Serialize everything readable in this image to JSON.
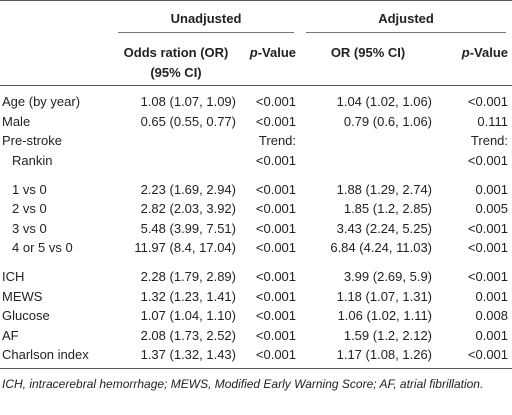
{
  "table": {
    "groups": [
      "Unadjusted",
      "Adjusted"
    ],
    "columns": [
      "Odds ration (OR) (95% CI)",
      "p-Value",
      "OR (95% CI)",
      "p-Value"
    ],
    "rows": [
      [
        "Age (by year)",
        "1.08 (1.07, 1.09)",
        "<0.001",
        "1.04 (1.02, 1.06)",
        "<0.001"
      ],
      [
        "Male",
        "0.65 (0.55, 0.77)",
        "<0.001",
        "0.79 (0.6, 1.06)",
        "0.111"
      ],
      [
        "Pre-stroke",
        null,
        "Trend:",
        null,
        "Trend:"
      ],
      [
        "Rankin",
        null,
        "<0.001",
        null,
        "<0.001"
      ],
      [
        "1 vs 0",
        "2.23 (1.69, 2.94)",
        "<0.001",
        "1.88 (1.29, 2.74)",
        "0.001"
      ],
      [
        "2 vs 0",
        "2.82 (2.03, 3.92)",
        "<0.001",
        "1.85 (1.2, 2.85)",
        "0.005"
      ],
      [
        "3 vs 0",
        "5.48 (3.99, 7.51)",
        "<0.001",
        "3.43 (2.24, 5.25)",
        "<0.001"
      ],
      [
        "4 or 5 vs 0",
        "11.97 (8.4, 17.04)",
        "<0.001",
        "6.84 (4.24, 11.03)",
        "<0.001"
      ],
      [
        "ICH",
        "2.28 (1.79, 2.89)",
        "<0.001",
        "3.99 (2.69, 5.9)",
        "<0.001"
      ],
      [
        "MEWS",
        "1.32 (1.23, 1.41)",
        "<0.001",
        "1.18 (1.07, 1.31)",
        "0.001"
      ],
      [
        "Glucose",
        "1.07 (1.04, 1.10)",
        "<0.001",
        "1.06 (1.02, 1.11)",
        "0.008"
      ],
      [
        "AF",
        "2.08 (1.73, 2.52)",
        "<0.001",
        "1.59 (1.2, 2.12)",
        "0.001"
      ],
      [
        "Charlson index",
        "1.37 (1.32, 1.43)",
        "<0.001",
        "1.17 (1.08, 1.26)",
        "<0.001"
      ]
    ]
  },
  "footnote": "ICH, intracerebral hemorrhage; MEWS, Modified Early Warning Score; AF, atrial fibrillation."
}
